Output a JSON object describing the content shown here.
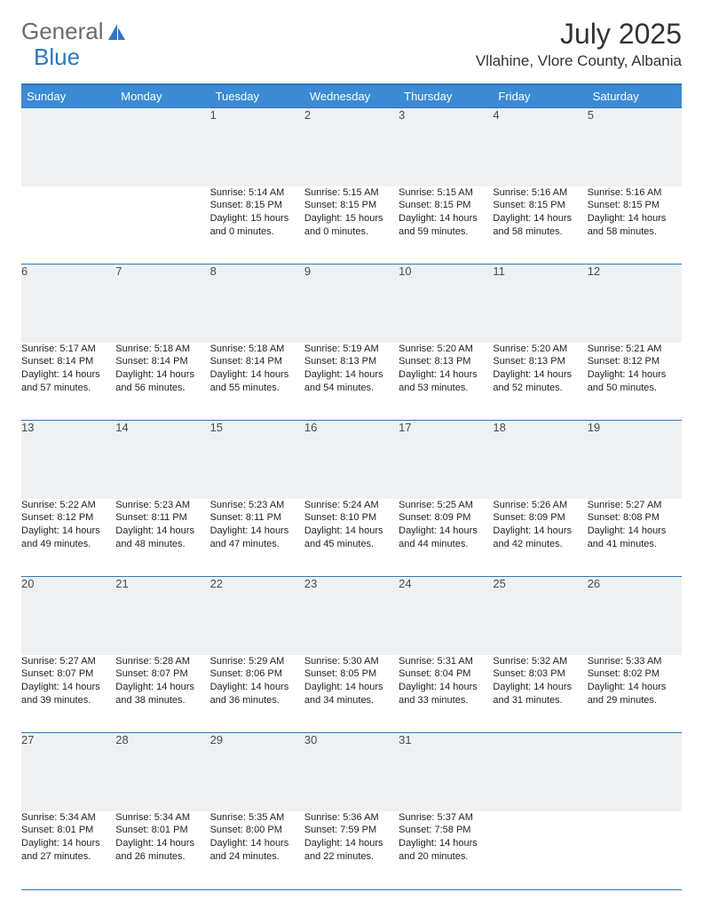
{
  "brand": {
    "word1": "General",
    "word2": "Blue"
  },
  "header": {
    "title": "July 2025",
    "location": "Vllahine, Vlore County, Albania"
  },
  "colors": {
    "header_bg": "#3b8bd4",
    "rule": "#2f77bb",
    "daynum_bg": "#eef1f4",
    "text": "#222222"
  },
  "days": [
    "Sunday",
    "Monday",
    "Tuesday",
    "Wednesday",
    "Thursday",
    "Friday",
    "Saturday"
  ],
  "weeks": [
    [
      null,
      null,
      {
        "n": "1",
        "sr": "Sunrise: 5:14 AM",
        "ss": "Sunset: 8:15 PM",
        "d1": "Daylight: 15 hours",
        "d2": "and 0 minutes."
      },
      {
        "n": "2",
        "sr": "Sunrise: 5:15 AM",
        "ss": "Sunset: 8:15 PM",
        "d1": "Daylight: 15 hours",
        "d2": "and 0 minutes."
      },
      {
        "n": "3",
        "sr": "Sunrise: 5:15 AM",
        "ss": "Sunset: 8:15 PM",
        "d1": "Daylight: 14 hours",
        "d2": "and 59 minutes."
      },
      {
        "n": "4",
        "sr": "Sunrise: 5:16 AM",
        "ss": "Sunset: 8:15 PM",
        "d1": "Daylight: 14 hours",
        "d2": "and 58 minutes."
      },
      {
        "n": "5",
        "sr": "Sunrise: 5:16 AM",
        "ss": "Sunset: 8:15 PM",
        "d1": "Daylight: 14 hours",
        "d2": "and 58 minutes."
      }
    ],
    [
      {
        "n": "6",
        "sr": "Sunrise: 5:17 AM",
        "ss": "Sunset: 8:14 PM",
        "d1": "Daylight: 14 hours",
        "d2": "and 57 minutes."
      },
      {
        "n": "7",
        "sr": "Sunrise: 5:18 AM",
        "ss": "Sunset: 8:14 PM",
        "d1": "Daylight: 14 hours",
        "d2": "and 56 minutes."
      },
      {
        "n": "8",
        "sr": "Sunrise: 5:18 AM",
        "ss": "Sunset: 8:14 PM",
        "d1": "Daylight: 14 hours",
        "d2": "and 55 minutes."
      },
      {
        "n": "9",
        "sr": "Sunrise: 5:19 AM",
        "ss": "Sunset: 8:13 PM",
        "d1": "Daylight: 14 hours",
        "d2": "and 54 minutes."
      },
      {
        "n": "10",
        "sr": "Sunrise: 5:20 AM",
        "ss": "Sunset: 8:13 PM",
        "d1": "Daylight: 14 hours",
        "d2": "and 53 minutes."
      },
      {
        "n": "11",
        "sr": "Sunrise: 5:20 AM",
        "ss": "Sunset: 8:13 PM",
        "d1": "Daylight: 14 hours",
        "d2": "and 52 minutes."
      },
      {
        "n": "12",
        "sr": "Sunrise: 5:21 AM",
        "ss": "Sunset: 8:12 PM",
        "d1": "Daylight: 14 hours",
        "d2": "and 50 minutes."
      }
    ],
    [
      {
        "n": "13",
        "sr": "Sunrise: 5:22 AM",
        "ss": "Sunset: 8:12 PM",
        "d1": "Daylight: 14 hours",
        "d2": "and 49 minutes."
      },
      {
        "n": "14",
        "sr": "Sunrise: 5:23 AM",
        "ss": "Sunset: 8:11 PM",
        "d1": "Daylight: 14 hours",
        "d2": "and 48 minutes."
      },
      {
        "n": "15",
        "sr": "Sunrise: 5:23 AM",
        "ss": "Sunset: 8:11 PM",
        "d1": "Daylight: 14 hours",
        "d2": "and 47 minutes."
      },
      {
        "n": "16",
        "sr": "Sunrise: 5:24 AM",
        "ss": "Sunset: 8:10 PM",
        "d1": "Daylight: 14 hours",
        "d2": "and 45 minutes."
      },
      {
        "n": "17",
        "sr": "Sunrise: 5:25 AM",
        "ss": "Sunset: 8:09 PM",
        "d1": "Daylight: 14 hours",
        "d2": "and 44 minutes."
      },
      {
        "n": "18",
        "sr": "Sunrise: 5:26 AM",
        "ss": "Sunset: 8:09 PM",
        "d1": "Daylight: 14 hours",
        "d2": "and 42 minutes."
      },
      {
        "n": "19",
        "sr": "Sunrise: 5:27 AM",
        "ss": "Sunset: 8:08 PM",
        "d1": "Daylight: 14 hours",
        "d2": "and 41 minutes."
      }
    ],
    [
      {
        "n": "20",
        "sr": "Sunrise: 5:27 AM",
        "ss": "Sunset: 8:07 PM",
        "d1": "Daylight: 14 hours",
        "d2": "and 39 minutes."
      },
      {
        "n": "21",
        "sr": "Sunrise: 5:28 AM",
        "ss": "Sunset: 8:07 PM",
        "d1": "Daylight: 14 hours",
        "d2": "and 38 minutes."
      },
      {
        "n": "22",
        "sr": "Sunrise: 5:29 AM",
        "ss": "Sunset: 8:06 PM",
        "d1": "Daylight: 14 hours",
        "d2": "and 36 minutes."
      },
      {
        "n": "23",
        "sr": "Sunrise: 5:30 AM",
        "ss": "Sunset: 8:05 PM",
        "d1": "Daylight: 14 hours",
        "d2": "and 34 minutes."
      },
      {
        "n": "24",
        "sr": "Sunrise: 5:31 AM",
        "ss": "Sunset: 8:04 PM",
        "d1": "Daylight: 14 hours",
        "d2": "and 33 minutes."
      },
      {
        "n": "25",
        "sr": "Sunrise: 5:32 AM",
        "ss": "Sunset: 8:03 PM",
        "d1": "Daylight: 14 hours",
        "d2": "and 31 minutes."
      },
      {
        "n": "26",
        "sr": "Sunrise: 5:33 AM",
        "ss": "Sunset: 8:02 PM",
        "d1": "Daylight: 14 hours",
        "d2": "and 29 minutes."
      }
    ],
    [
      {
        "n": "27",
        "sr": "Sunrise: 5:34 AM",
        "ss": "Sunset: 8:01 PM",
        "d1": "Daylight: 14 hours",
        "d2": "and 27 minutes."
      },
      {
        "n": "28",
        "sr": "Sunrise: 5:34 AM",
        "ss": "Sunset: 8:01 PM",
        "d1": "Daylight: 14 hours",
        "d2": "and 26 minutes."
      },
      {
        "n": "29",
        "sr": "Sunrise: 5:35 AM",
        "ss": "Sunset: 8:00 PM",
        "d1": "Daylight: 14 hours",
        "d2": "and 24 minutes."
      },
      {
        "n": "30",
        "sr": "Sunrise: 5:36 AM",
        "ss": "Sunset: 7:59 PM",
        "d1": "Daylight: 14 hours",
        "d2": "and 22 minutes."
      },
      {
        "n": "31",
        "sr": "Sunrise: 5:37 AM",
        "ss": "Sunset: 7:58 PM",
        "d1": "Daylight: 14 hours",
        "d2": "and 20 minutes."
      },
      null,
      null
    ]
  ]
}
